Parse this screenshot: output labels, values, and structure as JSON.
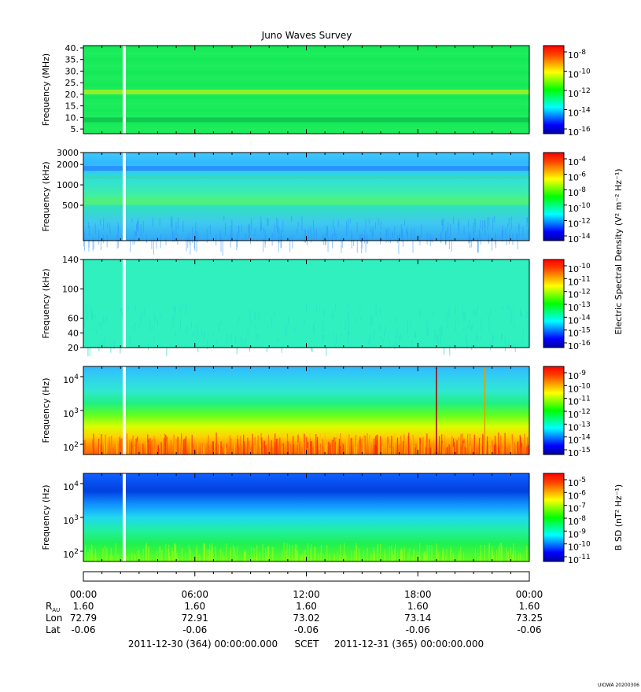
{
  "title": "Juno Waves Survey",
  "footer_stamp": "UIOWA 20200306",
  "colors": {
    "spectrogram_base": "#00e66a",
    "gap": "#ffffff",
    "colorbar": [
      "#0000a0",
      "#0000ff",
      "#0080ff",
      "#00ffff",
      "#00ff80",
      "#00ff00",
      "#80ff00",
      "#ffff00",
      "#ffa000",
      "#ff4000",
      "#ff0000"
    ]
  },
  "chart_data": [
    {
      "type": "heatmap",
      "panel": "1",
      "ylabel": "Frequency (MHz)",
      "yticks": [
        "40.",
        "35.",
        "30.",
        "25.",
        "20.",
        "15.",
        "10.",
        "5."
      ],
      "ylim": [
        3,
        41
      ],
      "colorbar_ticks": [
        {
          "base": "10",
          "exp": "-8"
        },
        {
          "base": "10",
          "exp": "-10"
        },
        {
          "base": "10",
          "exp": "-12"
        },
        {
          "base": "10",
          "exp": "-14"
        },
        {
          "base": "10",
          "exp": "-16"
        }
      ],
      "colorbar_label": "",
      "features": [
        {
          "frequency": 21,
          "description": "narrow band"
        },
        {
          "frequency": 9,
          "description": "narrow band"
        }
      ],
      "data_gap_hour": 2.2
    },
    {
      "type": "heatmap",
      "panel": "2",
      "ylabel": "Frequency (kHz)",
      "yticks": [
        "3000",
        "2000",
        "1000",
        "500"
      ],
      "ylim": [
        150,
        3000
      ],
      "colorbar_ticks": [
        {
          "base": "10",
          "exp": "-4"
        },
        {
          "base": "10",
          "exp": "-6"
        },
        {
          "base": "10",
          "exp": "-8"
        },
        {
          "base": "10",
          "exp": "-10"
        },
        {
          "base": "10",
          "exp": "-12"
        },
        {
          "base": "10",
          "exp": "-14"
        }
      ],
      "colorbar_label": "",
      "data_gap_hour": 2.2
    },
    {
      "type": "heatmap",
      "panel": "3",
      "ylabel": "Frequency (kHz)",
      "yticks": [
        "140",
        "100",
        "60",
        "40",
        "20"
      ],
      "ylim": [
        20,
        140
      ],
      "colorbar_ticks": [
        {
          "base": "10",
          "exp": "-10"
        },
        {
          "base": "10",
          "exp": "-11"
        },
        {
          "base": "10",
          "exp": "-12"
        },
        {
          "base": "10",
          "exp": "-13"
        },
        {
          "base": "10",
          "exp": "-14"
        },
        {
          "base": "10",
          "exp": "-15"
        },
        {
          "base": "10",
          "exp": "-16"
        }
      ],
      "colorbar_label": "Electric Spectral Density (V² m⁻² Hz⁻¹)",
      "data_gap_hour": 2.2
    },
    {
      "type": "heatmap",
      "panel": "4",
      "ylabel": "Frequency (Hz)",
      "yticks": [
        {
          "base": "10",
          "exp": "4"
        },
        {
          "base": "10",
          "exp": "3"
        },
        {
          "base": "10",
          "exp": "2"
        }
      ],
      "ylim": [
        50,
        20000
      ],
      "colorbar_ticks": [
        {
          "base": "10",
          "exp": "-9"
        },
        {
          "base": "10",
          "exp": "-10"
        },
        {
          "base": "10",
          "exp": "-11"
        },
        {
          "base": "10",
          "exp": "-12"
        },
        {
          "base": "10",
          "exp": "-13"
        },
        {
          "base": "10",
          "exp": "-14"
        },
        {
          "base": "10",
          "exp": "-15"
        }
      ],
      "colorbar_label": "",
      "features": [
        {
          "hour": 19.0,
          "description": "vertical spike"
        },
        {
          "hour": 21.6,
          "description": "vertical spike"
        }
      ],
      "data_gap_hour": 2.2
    },
    {
      "type": "heatmap",
      "panel": "5",
      "ylabel": "Frequency (Hz)",
      "yticks": [
        {
          "base": "10",
          "exp": "4"
        },
        {
          "base": "10",
          "exp": "3"
        },
        {
          "base": "10",
          "exp": "2"
        }
      ],
      "ylim": [
        50,
        20000
      ],
      "colorbar_ticks": [
        {
          "base": "10",
          "exp": "-5"
        },
        {
          "base": "10",
          "exp": "-6"
        },
        {
          "base": "10",
          "exp": "-7"
        },
        {
          "base": "10",
          "exp": "-8"
        },
        {
          "base": "10",
          "exp": "-9"
        },
        {
          "base": "10",
          "exp": "-10"
        },
        {
          "base": "10",
          "exp": "-11"
        }
      ],
      "colorbar_label": "B SD (nT² Hz⁻¹)",
      "data_gap_hour": 2.2
    }
  ],
  "time_axis": {
    "ticks": [
      "00:00",
      "06:00",
      "12:00",
      "18:00",
      "00:00"
    ],
    "rows": [
      {
        "label": "R",
        "label_sub": "AU",
        "values": [
          "1.60",
          "1.60",
          "1.60",
          "1.60",
          "1.60"
        ]
      },
      {
        "label": "Lon",
        "label_sub": "",
        "values": [
          "72.79",
          "72.91",
          "73.02",
          "73.14",
          "73.25"
        ]
      },
      {
        "label": "Lat",
        "label_sub": "",
        "values": [
          "-0.06",
          "-0.06",
          "-0.06",
          "-0.06",
          "-0.06"
        ]
      }
    ],
    "start": "2011-12-30 (364) 00:00:00.000",
    "scet": "SCET",
    "end": "2011-12-31 (365) 00:00:00.000"
  }
}
